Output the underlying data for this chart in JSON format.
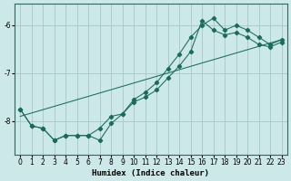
{
  "xlabel": "Humidex (Indice chaleur)",
  "ylabel": "",
  "background_color": "#cce8e8",
  "grid_color": "#aacccc",
  "line_color": "#1a6b5a",
  "xlim": [
    -0.5,
    23.5
  ],
  "ylim": [
    -8.7,
    -5.55
  ],
  "yticks": [
    -8,
    -7,
    -6
  ],
  "xticks": [
    0,
    1,
    2,
    3,
    4,
    5,
    6,
    7,
    8,
    9,
    10,
    11,
    12,
    13,
    14,
    15,
    16,
    17,
    18,
    19,
    20,
    21,
    22,
    23
  ],
  "series1_x": [
    0,
    1,
    2,
    3,
    4,
    5,
    6,
    7,
    8,
    9,
    10,
    11,
    12,
    13,
    14,
    15,
    16,
    17,
    18,
    19,
    20,
    21,
    22,
    23
  ],
  "series1_y": [
    -7.75,
    -8.1,
    -8.15,
    -8.4,
    -8.3,
    -8.3,
    -8.3,
    -8.4,
    -8.05,
    -7.85,
    -7.6,
    -7.5,
    -7.35,
    -7.1,
    -6.85,
    -6.55,
    -5.9,
    -6.1,
    -6.2,
    -6.15,
    -6.25,
    -6.4,
    -6.45,
    -6.35
  ],
  "series2_x": [
    0,
    1,
    2,
    3,
    4,
    5,
    6,
    7,
    8,
    9,
    10,
    11,
    12,
    13,
    14,
    15,
    16,
    17,
    18,
    19,
    20,
    21,
    22,
    23
  ],
  "series2_y": [
    -7.75,
    -8.1,
    -8.15,
    -8.4,
    -8.3,
    -8.3,
    -8.3,
    -8.15,
    -7.9,
    -7.85,
    -7.55,
    -7.4,
    -7.2,
    -6.9,
    -6.6,
    -6.25,
    -6.0,
    -5.85,
    -6.1,
    -6.0,
    -6.1,
    -6.25,
    -6.4,
    -6.3
  ],
  "series3_x": [
    0,
    23
  ],
  "series3_y": [
    -7.9,
    -6.3
  ]
}
